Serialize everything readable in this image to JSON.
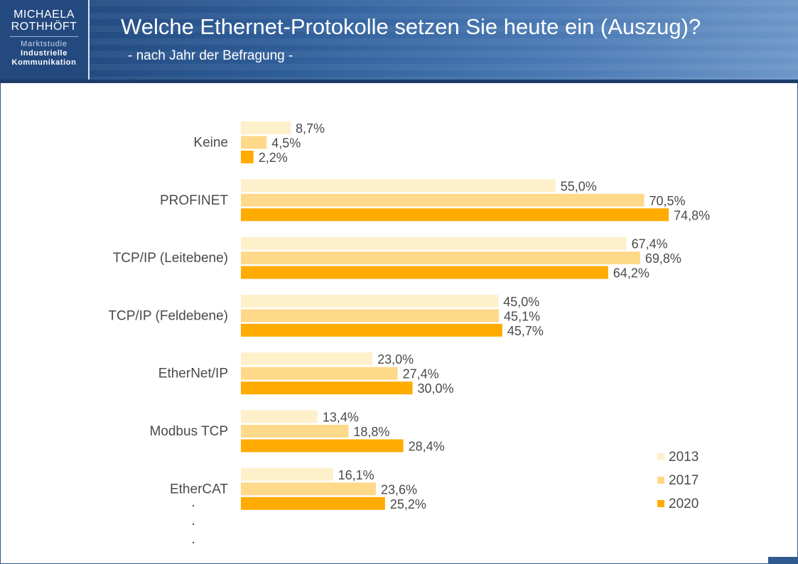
{
  "header": {
    "logo_line1": "MICHAELA",
    "logo_line2": "ROTHHÖFT",
    "logo_study": "Marktstudie",
    "logo_sub1": "Industrielle",
    "logo_sub2": "Kommunikation",
    "title": "Welche Ethernet-Protokolle setzen Sie heute ein (Auszug)?",
    "subtitle": "- nach Jahr der Befragung -"
  },
  "colors": {
    "header_blue": "#2e5d98",
    "series_2013": "#fff0cc",
    "series_2017": "#ffd98a",
    "series_2020": "#ffab00"
  },
  "chart_data": {
    "type": "bar",
    "orientation": "horizontal",
    "title": "Welche Ethernet-Protokolle setzen Sie heute ein (Auszug)?",
    "subtitle": "- nach Jahr der Befragung -",
    "categories": [
      "Keine",
      "PROFINET",
      "TCP/IP (Leitebene)",
      "TCP/IP (Feldebene)",
      "EtherNet/IP",
      "Modbus TCP",
      "EtherCAT"
    ],
    "series": [
      {
        "name": "2013",
        "color": "#fff0cc",
        "values": [
          8.7,
          55.0,
          67.4,
          45.0,
          23.0,
          13.4,
          16.1
        ],
        "labels": [
          "8,7%",
          "55,0%",
          "67,4%",
          "45,0%",
          "23,0%",
          "13,4%",
          "16,1%"
        ]
      },
      {
        "name": "2017",
        "color": "#ffd98a",
        "values": [
          4.5,
          70.5,
          69.8,
          45.1,
          27.4,
          18.8,
          23.6
        ],
        "labels": [
          "4,5%",
          "70,5%",
          "69,8%",
          "45,1%",
          "27,4%",
          "18,8%",
          "23,6%"
        ]
      },
      {
        "name": "2020",
        "color": "#ffab00",
        "values": [
          2.2,
          74.8,
          64.2,
          45.7,
          30.0,
          28.4,
          25.2
        ],
        "labels": [
          "2,2%",
          "74,8%",
          "64,2%",
          "45,7%",
          "30,0%",
          "28,4%",
          "25,2%"
        ]
      }
    ],
    "value_unit": "%",
    "xlim": [
      0,
      100
    ],
    "grid": false,
    "legend_position": "bottom-right",
    "continuation_marks": [
      ".",
      ".",
      "."
    ]
  }
}
